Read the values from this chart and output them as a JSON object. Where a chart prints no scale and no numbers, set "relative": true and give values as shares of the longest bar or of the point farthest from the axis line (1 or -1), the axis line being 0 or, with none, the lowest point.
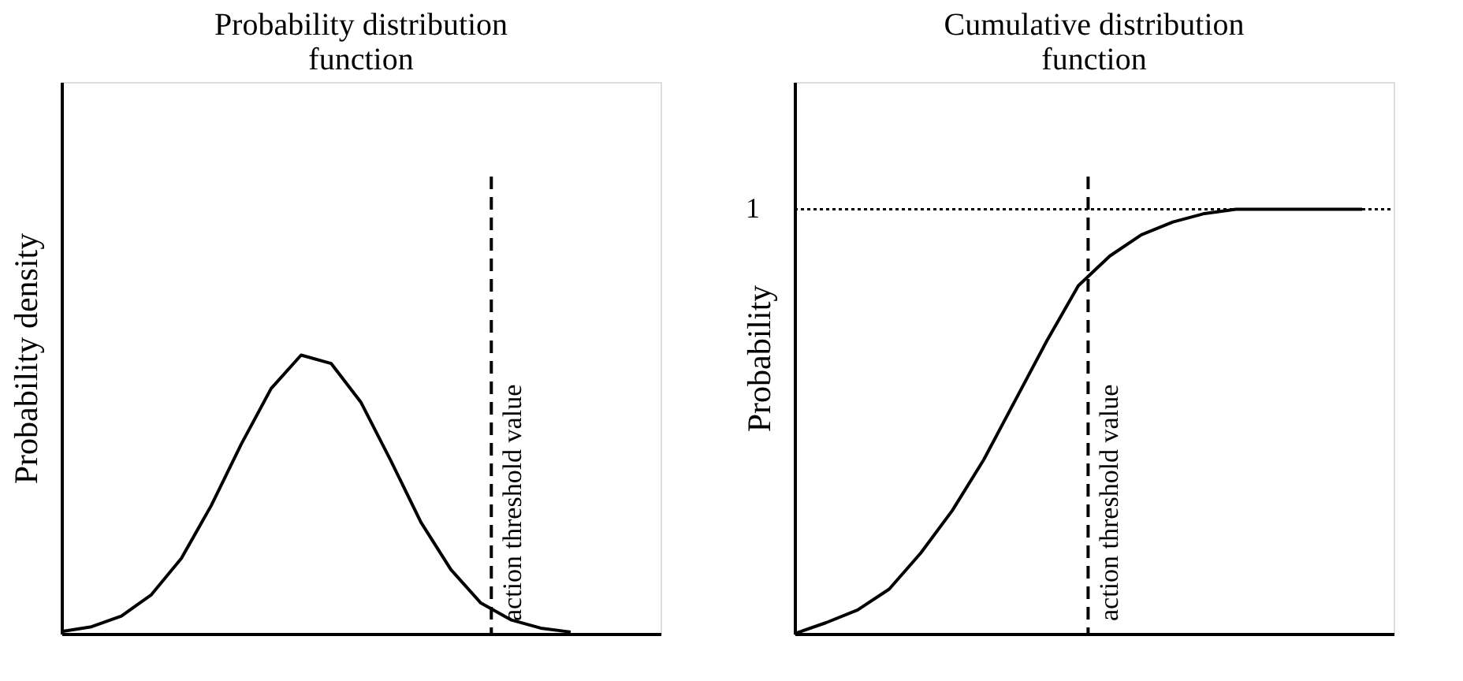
{
  "chart_data": [
    {
      "type": "line",
      "title": "Probability distribution function",
      "ylabel": "Probability density",
      "relative": true,
      "tick_labels": false,
      "grid": false,
      "marker": "none",
      "line_style": "solid",
      "categories": [
        null,
        null,
        null,
        null,
        null,
        null,
        null,
        null,
        null,
        null,
        null,
        null,
        null,
        null,
        null,
        null,
        null,
        null,
        null,
        null,
        null
      ],
      "series": [
        {
          "color": "#000000",
          "values": [
            0.008,
            0.025,
            0.063,
            0.14,
            0.27,
            0.46,
            0.68,
            0.88,
            1.0,
            0.97,
            0.83,
            0.62,
            0.4,
            0.23,
            0.11,
            0.05,
            0.02,
            0.006,
            null,
            null,
            null
          ]
        }
      ],
      "annotations": [
        "action threshold value"
      ]
    },
    {
      "type": "line",
      "title": "Cumulative distribution function",
      "ylabel": "Probability",
      "relative": true,
      "tick_labels": false,
      "grid": false,
      "marker": "none",
      "line_style": "solid",
      "categories": [
        null,
        null,
        null,
        null,
        null,
        null,
        null,
        null,
        null,
        null,
        null,
        null,
        null,
        null,
        null,
        null,
        null,
        null,
        null,
        null
      ],
      "series": [
        {
          "color": "#000000",
          "values": [
            0,
            0.026,
            0.056,
            0.105,
            0.19,
            0.29,
            0.41,
            0.55,
            0.69,
            0.82,
            0.89,
            0.94,
            0.97,
            0.99,
            1.0,
            1.0,
            1.0,
            1.0,
            1.0,
            null
          ]
        }
      ],
      "annotations": [
        "action threshold value"
      ],
      "ref_lines": [
        {
          "axis": "y",
          "value": 1,
          "label": "1",
          "color": "#000000",
          "line_style": "dotted"
        }
      ]
    }
  ]
}
